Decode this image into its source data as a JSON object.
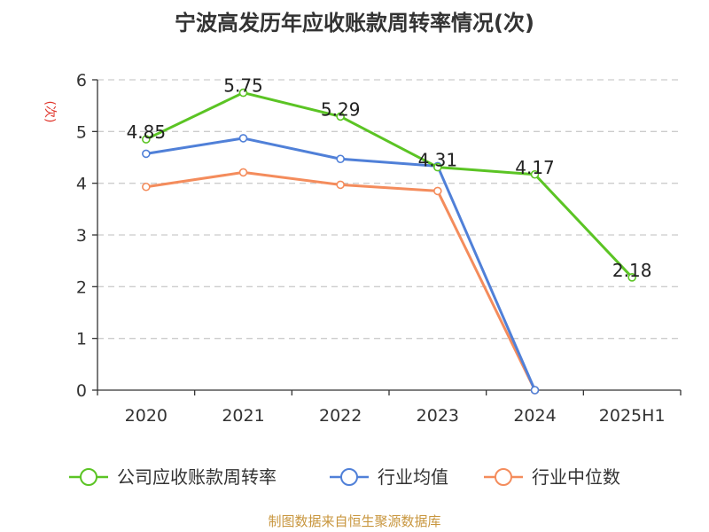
{
  "colors": {
    "series_1": "#5bc424",
    "series_2": "#5080d8",
    "series_3": "#f48c5c",
    "axis": "#333333",
    "grid": "#cccccc",
    "title": "#333333",
    "unit": "#e0352b",
    "source": "#c8963e"
  },
  "footer": {
    "source": "制图数据来自恒生聚源数据库"
  },
  "chart_data": {
    "type": "line",
    "title": "宁波高发历年应收账款周转率情况(次)",
    "ylabel": "(次)",
    "xlabel": "",
    "categories": [
      "2020",
      "2021",
      "2022",
      "2023",
      "2024",
      "2025H1"
    ],
    "ylim": [
      0,
      6
    ],
    "yticks": [
      "0",
      "1",
      "2",
      "3",
      "4",
      "5",
      "6"
    ],
    "grid": true,
    "legend_position": "bottom",
    "series": [
      {
        "name": "公司应收账款周转率",
        "values": [
          4.85,
          5.75,
          5.29,
          4.31,
          4.17,
          2.18
        ],
        "labels": [
          "4.85",
          "5.75",
          "5.29",
          "4.31",
          "4.17",
          "2.18"
        ]
      },
      {
        "name": "行业均值",
        "values": [
          4.57,
          4.87,
          4.47,
          4.33,
          0,
          null
        ]
      },
      {
        "name": "行业中位数",
        "values": [
          3.93,
          4.21,
          3.97,
          3.85,
          0,
          null
        ]
      }
    ]
  }
}
